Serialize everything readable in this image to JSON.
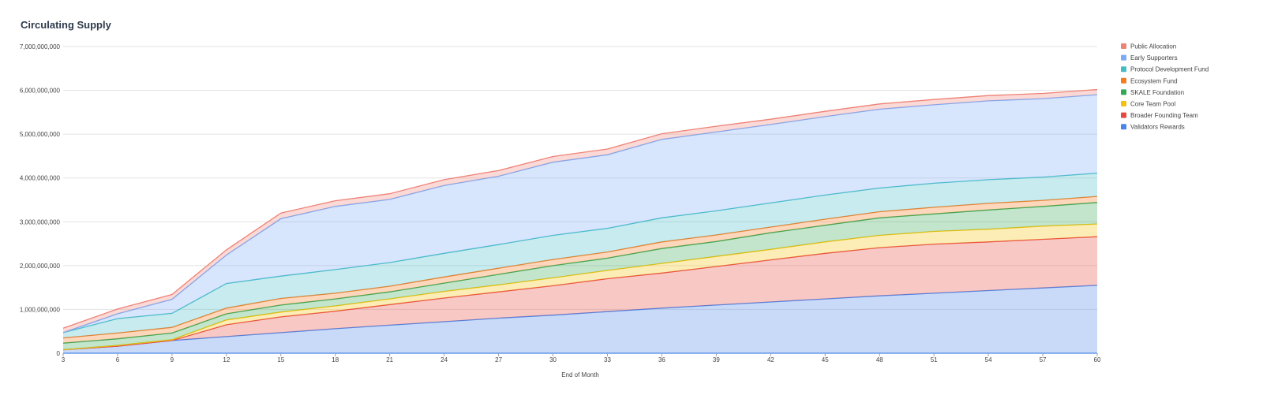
{
  "chart_data": {
    "type": "area",
    "stacked": true,
    "title": "Circulating Supply",
    "xlabel": "End of Month",
    "ylabel": "",
    "ylim": [
      0,
      7000000000
    ],
    "yticks": [
      0,
      1000000000,
      2000000000,
      3000000000,
      4000000000,
      5000000000,
      6000000000,
      7000000000
    ],
    "ytick_labels": [
      "0",
      "1,000,000,000",
      "2,000,000,000",
      "3,000,000,000",
      "4,000,000,000",
      "5,000,000,000",
      "6,000,000,000",
      "7,000,000,000"
    ],
    "x": [
      3,
      6,
      9,
      12,
      15,
      18,
      21,
      24,
      27,
      30,
      33,
      36,
      39,
      42,
      45,
      48,
      51,
      54,
      57,
      60
    ],
    "grid": true,
    "legend_position": "right",
    "series": [
      {
        "name": "Validators Rewards",
        "color": "#4a86e8",
        "values": [
          80000000,
          160000000,
          290000000,
          380000000,
          470000000,
          560000000,
          640000000,
          720000000,
          800000000,
          870000000,
          950000000,
          1030000000,
          1100000000,
          1170000000,
          1240000000,
          1310000000,
          1370000000,
          1430000000,
          1490000000,
          1550000000
        ]
      },
      {
        "name": "Broader Founding Team",
        "color": "#e8493f",
        "values": [
          0,
          0,
          0,
          270000000,
          360000000,
          400000000,
          470000000,
          540000000,
          600000000,
          670000000,
          750000000,
          800000000,
          880000000,
          960000000,
          1040000000,
          1100000000,
          1120000000,
          1110000000,
          1110000000,
          1110000000
        ]
      },
      {
        "name": "Core Team Pool",
        "color": "#f4c20d",
        "values": [
          0,
          20000000,
          20000000,
          110000000,
          110000000,
          120000000,
          130000000,
          150000000,
          160000000,
          180000000,
          190000000,
          220000000,
          230000000,
          240000000,
          260000000,
          280000000,
          290000000,
          290000000,
          300000000,
          290000000
        ]
      },
      {
        "name": "SKALE Foundation",
        "color": "#34a853",
        "values": [
          150000000,
          150000000,
          150000000,
          140000000,
          160000000,
          160000000,
          160000000,
          190000000,
          240000000,
          280000000,
          280000000,
          340000000,
          340000000,
          380000000,
          380000000,
          400000000,
          400000000,
          440000000,
          450000000,
          490000000
        ]
      },
      {
        "name": "Ecosystem Fund",
        "color": "#f47c20",
        "values": [
          120000000,
          130000000,
          130000000,
          130000000,
          150000000,
          130000000,
          130000000,
          140000000,
          140000000,
          140000000,
          140000000,
          150000000,
          150000000,
          130000000,
          140000000,
          140000000,
          150000000,
          150000000,
          140000000,
          140000000
        ]
      },
      {
        "name": "Protocol Development Fund",
        "color": "#46bdc6",
        "values": [
          120000000,
          330000000,
          320000000,
          560000000,
          510000000,
          540000000,
          540000000,
          540000000,
          540000000,
          550000000,
          540000000,
          550000000,
          550000000,
          550000000,
          550000000,
          540000000,
          550000000,
          540000000,
          530000000,
          530000000
        ]
      },
      {
        "name": "Early Supporters",
        "color": "#7baaf7",
        "values": [
          0,
          110000000,
          320000000,
          650000000,
          1310000000,
          1440000000,
          1440000000,
          1550000000,
          1560000000,
          1670000000,
          1680000000,
          1790000000,
          1800000000,
          1790000000,
          1790000000,
          1800000000,
          1790000000,
          1800000000,
          1790000000,
          1790000000
        ]
      },
      {
        "name": "Public Allocation",
        "color": "#ee8276",
        "values": [
          100000000,
          110000000,
          110000000,
          120000000,
          130000000,
          130000000,
          130000000,
          130000000,
          130000000,
          130000000,
          130000000,
          130000000,
          130000000,
          120000000,
          120000000,
          120000000,
          120000000,
          120000000,
          120000000,
          120000000
        ]
      }
    ],
    "legend_order": [
      "Public Allocation",
      "Early Supporters",
      "Protocol Development Fund",
      "Ecosystem Fund",
      "SKALE Foundation",
      "Core Team Pool",
      "Broader Founding Team",
      "Validators Rewards"
    ]
  }
}
